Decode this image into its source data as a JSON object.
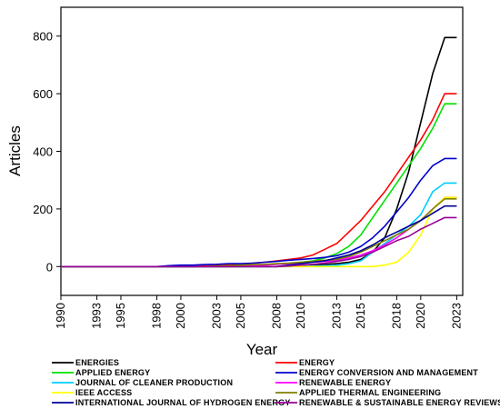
{
  "chart_data": {
    "type": "line",
    "xlabel": "Year",
    "ylabel": "Articles",
    "xlim": [
      1990,
      2023.5
    ],
    "ylim": [
      -100,
      900
    ],
    "x_ticks": [
      1990,
      1993,
      1995,
      1998,
      2000,
      2003,
      2005,
      2008,
      2010,
      2013,
      2015,
      2018,
      2020,
      2023
    ],
    "x_tick_labels": [
      "1990",
      "1993",
      "1995",
      "1998",
      "2000",
      "2003",
      "2005",
      "2008",
      "2010",
      "2013",
      "2015",
      "2018",
      "2020",
      "2023"
    ],
    "y_ticks": [
      0,
      200,
      400,
      600,
      800
    ],
    "y_tick_labels": [
      "0",
      "200",
      "400",
      "600",
      "800"
    ],
    "grid": false,
    "legend_position": "bottom",
    "x": [
      1990,
      1991,
      1992,
      1993,
      1994,
      1995,
      1996,
      1997,
      1998,
      1999,
      2000,
      2001,
      2002,
      2003,
      2004,
      2005,
      2006,
      2007,
      2008,
      2009,
      2010,
      2011,
      2012,
      2013,
      2014,
      2015,
      2016,
      2017,
      2018,
      2019,
      2020,
      2021,
      2022,
      2023
    ],
    "series": [
      {
        "name": "ENERGIES",
        "color": "#000000",
        "values": [
          0,
          0,
          0,
          0,
          0,
          0,
          0,
          0,
          0,
          0,
          0,
          0,
          0,
          0,
          0,
          0,
          0,
          0,
          0,
          2,
          3,
          5,
          7,
          10,
          15,
          25,
          50,
          100,
          200,
          330,
          500,
          670,
          795,
          795
        ]
      },
      {
        "name": "ENERGY",
        "color": "#ff0000",
        "values": [
          0,
          0,
          0,
          0,
          0,
          0,
          0,
          0,
          0,
          0,
          0,
          0,
          2,
          3,
          5,
          8,
          12,
          15,
          20,
          25,
          30,
          40,
          60,
          80,
          120,
          160,
          210,
          260,
          320,
          380,
          440,
          510,
          600,
          600
        ]
      },
      {
        "name": "APPLIED ENERGY",
        "color": "#00e000",
        "values": [
          0,
          0,
          0,
          0,
          0,
          0,
          0,
          0,
          0,
          0,
          0,
          0,
          0,
          0,
          0,
          2,
          3,
          5,
          8,
          12,
          15,
          20,
          30,
          45,
          70,
          110,
          170,
          230,
          290,
          350,
          410,
          480,
          565,
          565
        ]
      },
      {
        "name": "ENERGY CONVERSION AND MANAGEMENT",
        "color": "#0000cc",
        "values": [
          0,
          0,
          0,
          0,
          0,
          0,
          0,
          0,
          0,
          3,
          5,
          5,
          7,
          8,
          10,
          10,
          12,
          15,
          18,
          22,
          25,
          28,
          32,
          38,
          50,
          70,
          100,
          140,
          190,
          240,
          300,
          350,
          375,
          375
        ]
      },
      {
        "name": "JOURNAL OF CLEANER PRODUCTION",
        "color": "#00ccff",
        "values": [
          0,
          0,
          0,
          0,
          0,
          0,
          0,
          0,
          0,
          0,
          0,
          0,
          0,
          0,
          0,
          0,
          0,
          0,
          0,
          0,
          1,
          2,
          3,
          5,
          10,
          20,
          50,
          80,
          110,
          140,
          180,
          260,
          290,
          290
        ]
      },
      {
        "name": "RENEWABLE ENERGY",
        "color": "#ff00ff",
        "values": [
          0,
          0,
          0,
          0,
          0,
          0,
          0,
          0,
          0,
          0,
          0,
          0,
          0,
          0,
          0,
          2,
          3,
          5,
          8,
          10,
          12,
          15,
          18,
          22,
          30,
          40,
          55,
          75,
          100,
          130,
          160,
          200,
          240,
          240
        ]
      },
      {
        "name": "IEEE ACCESS",
        "color": "#ffff00",
        "values": [
          0,
          0,
          0,
          0,
          0,
          0,
          0,
          0,
          0,
          0,
          0,
          0,
          0,
          0,
          0,
          0,
          0,
          0,
          0,
          0,
          0,
          0,
          0,
          0,
          0,
          0,
          0,
          5,
          15,
          50,
          110,
          200,
          240,
          240
        ]
      },
      {
        "name": "APPLIED THERMAL ENGINEERING",
        "color": "#808000",
        "values": [
          0,
          0,
          0,
          0,
          0,
          0,
          0,
          0,
          0,
          0,
          0,
          0,
          0,
          2,
          3,
          5,
          7,
          8,
          10,
          12,
          15,
          18,
          22,
          25,
          35,
          50,
          70,
          90,
          110,
          130,
          160,
          200,
          235,
          235
        ]
      },
      {
        "name": "INTERNATIONAL JOURNAL OF HYDROGEN ENERGY",
        "color": "#000099",
        "values": [
          0,
          0,
          0,
          0,
          0,
          0,
          0,
          0,
          0,
          0,
          0,
          0,
          0,
          0,
          0,
          0,
          0,
          0,
          0,
          5,
          10,
          15,
          20,
          30,
          40,
          55,
          75,
          100,
          120,
          140,
          160,
          185,
          210,
          210
        ]
      },
      {
        "name": "RENEWABLE & SUSTAINABLE ENERGY REVIEWS",
        "color": "#990099",
        "values": [
          0,
          0,
          0,
          0,
          0,
          0,
          0,
          0,
          0,
          0,
          0,
          0,
          0,
          0,
          0,
          0,
          0,
          0,
          0,
          2,
          5,
          8,
          12,
          18,
          25,
          35,
          50,
          70,
          90,
          105,
          130,
          150,
          170,
          170
        ]
      }
    ]
  }
}
